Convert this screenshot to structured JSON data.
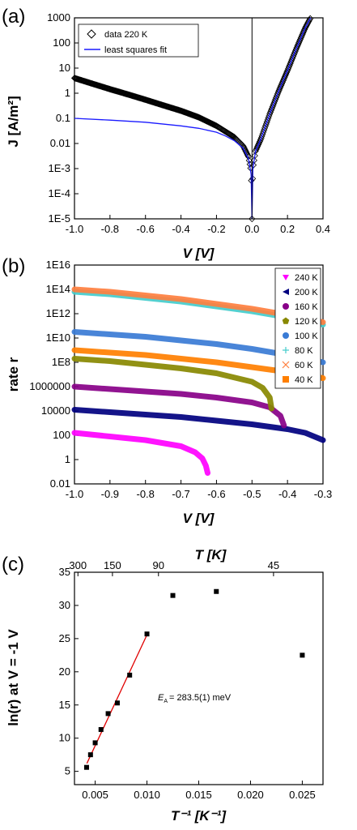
{
  "chart_data": [
    {
      "panel": "(a)",
      "type": "line",
      "xlabel": "V [V]",
      "ylabel": "J [A/m²]",
      "xlim": [
        -1.0,
        0.4
      ],
      "ylim_log10": [
        -5,
        3
      ],
      "log_y": true,
      "xticks": [
        "-1.0",
        "-0.8",
        "-0.6",
        "-0.4",
        "-0.2",
        "0.0",
        "0.2",
        "0.4"
      ],
      "yticks": [
        "1E-5",
        "1E-4",
        "1E-3",
        "0.01",
        "0.1",
        "1",
        "10",
        "100",
        "1000"
      ],
      "legend": [
        "data 220 K",
        "least squares fit"
      ],
      "legend_position": "top-left",
      "series": [
        {
          "name": "data 220 K",
          "marker": "diamond",
          "color": "#000000",
          "x": [
            -1.0,
            -0.9,
            -0.8,
            -0.7,
            -0.6,
            -0.5,
            -0.4,
            -0.3,
            -0.2,
            -0.1,
            -0.05,
            -0.02,
            -0.005,
            0.0,
            0.005,
            0.02,
            0.05,
            0.1,
            0.15,
            0.2,
            0.25,
            0.3,
            0.33
          ],
          "y": [
            4.0,
            2.4,
            1.45,
            0.9,
            0.55,
            0.33,
            0.2,
            0.11,
            0.05,
            0.018,
            0.008,
            0.003,
            0.0008,
            1e-05,
            0.001,
            0.005,
            0.015,
            0.15,
            1.2,
            8,
            60,
            400,
            1000
          ]
        },
        {
          "name": "least squares fit",
          "color": "#1a1aff",
          "x": [
            -1.0,
            -0.8,
            -0.6,
            -0.4,
            -0.3,
            -0.2,
            -0.15,
            -0.1,
            -0.05,
            -0.02,
            -0.005,
            0.0,
            0.005,
            0.02,
            0.05,
            0.1,
            0.15,
            0.2,
            0.25,
            0.3,
            0.33
          ],
          "y": [
            0.1,
            0.085,
            0.07,
            0.05,
            0.04,
            0.028,
            0.02,
            0.013,
            0.0065,
            0.0025,
            0.0006,
            1e-05,
            0.001,
            0.005,
            0.015,
            0.15,
            1.2,
            8,
            60,
            400,
            1000
          ]
        }
      ]
    },
    {
      "panel": "(b)",
      "type": "scatter",
      "xlabel": "V [V]",
      "ylabel": "rate r",
      "xlim": [
        -1.0,
        -0.3
      ],
      "ylim_log10": [
        -2,
        16
      ],
      "log_y": true,
      "xticks": [
        "-1.0",
        "-0.9",
        "-0.8",
        "-0.7",
        "-0.6",
        "-0.5",
        "-0.4",
        "-0.3"
      ],
      "yticks": [
        "0.01",
        "1",
        "100",
        "10000",
        "1000000",
        "1E8",
        "1E10",
        "1E12",
        "1E14",
        "1E16"
      ],
      "legend_position": "top-right",
      "series": [
        {
          "name": "240 K",
          "marker": "triangle-down",
          "color": "#ff00ff",
          "x": [
            -1.0,
            -0.9,
            -0.8,
            -0.7,
            -0.66,
            -0.64,
            -0.63,
            -0.625
          ],
          "log10y": [
            2.2,
            1.9,
            1.6,
            1.1,
            0.6,
            0.1,
            -0.5,
            -1.1
          ]
        },
        {
          "name": "200 K",
          "marker": "triangle-left",
          "color": "#00007f",
          "x": [
            -1.0,
            -0.9,
            -0.8,
            -0.7,
            -0.6,
            -0.5,
            -0.4,
            -0.35,
            -0.3
          ],
          "log10y": [
            4.1,
            3.9,
            3.7,
            3.5,
            3.2,
            2.9,
            2.5,
            2.2,
            1.6
          ]
        },
        {
          "name": "160 K",
          "marker": "circle",
          "color": "#880088",
          "x": [
            -1.0,
            -0.9,
            -0.8,
            -0.7,
            -0.6,
            -0.5,
            -0.45,
            -0.42,
            -0.41
          ],
          "log10y": [
            6.0,
            5.8,
            5.6,
            5.4,
            5.1,
            4.7,
            4.3,
            3.6,
            2.8
          ]
        },
        {
          "name": "120 K",
          "marker": "pentagon",
          "color": "#888800",
          "x": [
            -1.0,
            -0.9,
            -0.8,
            -0.7,
            -0.6,
            -0.5,
            -0.47,
            -0.45,
            -0.445
          ],
          "log10y": [
            8.3,
            8.1,
            7.8,
            7.5,
            7.1,
            6.4,
            5.9,
            5.1,
            4.2
          ]
        },
        {
          "name": "100 K",
          "marker": "sphere",
          "color": "#3a7bd5",
          "x": [
            -1.0,
            -0.9,
            -0.8,
            -0.7,
            -0.6,
            -0.5,
            -0.4,
            -0.3
          ],
          "log10y": [
            10.5,
            10.3,
            10.1,
            9.8,
            9.5,
            9.1,
            8.6,
            8.0
          ]
        },
        {
          "name": "80 K",
          "marker": "plus",
          "color": "#44cccc",
          "x": [
            -1.0,
            -0.9,
            -0.8,
            -0.7,
            -0.6,
            -0.5,
            -0.4,
            -0.3
          ],
          "log10y": [
            13.8,
            13.6,
            13.3,
            13.0,
            12.6,
            12.2,
            11.7,
            11.1
          ]
        },
        {
          "name": "60 K",
          "marker": "cross",
          "color": "#ff7f3f",
          "x": [
            -1.0,
            -0.9,
            -0.8,
            -0.7,
            -0.6,
            -0.5,
            -0.4,
            -0.3
          ],
          "log10y": [
            14.0,
            13.8,
            13.5,
            13.2,
            12.8,
            12.4,
            11.9,
            11.3
          ]
        },
        {
          "name": "40 K",
          "marker": "square",
          "color": "#ff7f00",
          "x": [
            -1.0,
            -0.9,
            -0.8,
            -0.7,
            -0.6,
            -0.5,
            -0.4,
            -0.3
          ],
          "log10y": [
            9.0,
            8.8,
            8.6,
            8.3,
            8.0,
            7.6,
            7.2,
            6.7
          ]
        }
      ]
    },
    {
      "panel": "(c)",
      "type": "scatter",
      "xlabel": "T⁻¹ [K⁻¹]",
      "ylabel": "ln(r) at V = -1 V",
      "top_xlabel": "T [K]",
      "xlim": [
        0.003,
        0.027
      ],
      "ylim": [
        3,
        35
      ],
      "xticks": [
        "0.005",
        "0.010",
        "0.015",
        "0.020",
        "0.025"
      ],
      "yticks": [
        "5",
        "10",
        "15",
        "20",
        "25",
        "30",
        "35"
      ],
      "top_ticks": [
        "300",
        "150",
        "90",
        "45"
      ],
      "annotation": "E_A = 283.5(1) meV",
      "points": {
        "x": [
          0.00417,
          0.00455,
          0.005,
          0.00556,
          0.00625,
          0.00714,
          0.00833,
          0.01,
          0.0125,
          0.0167,
          0.025
        ],
        "y": [
          5.6,
          7.5,
          9.3,
          11.3,
          13.7,
          15.3,
          19.5,
          25.7,
          31.5,
          32.1,
          22.5
        ],
        "color": "#000000"
      },
      "fit": {
        "x": [
          0.0042,
          0.0101
        ],
        "y": [
          6.2,
          25.9
        ],
        "color": "#e00000"
      }
    }
  ],
  "labels": {
    "a_panel": "(a)",
    "b_panel": "(b)",
    "c_panel": "(c)",
    "a_xlabel": "V [V]",
    "a_ylabel": "J [A/m²]",
    "b_xlabel": "V [V]",
    "b_ylabel": "rate r",
    "c_xlabel": "T⁻¹ [K⁻¹]",
    "c_ylabel": "ln(r) at V = -1 V",
    "c_toplabel": "T [K]",
    "legend_a_1": "data 220 K",
    "legend_a_2": "least squares fit",
    "ea_label": "E",
    "ea_sub": "A",
    "ea_value": "= 283.5(1) meV"
  }
}
